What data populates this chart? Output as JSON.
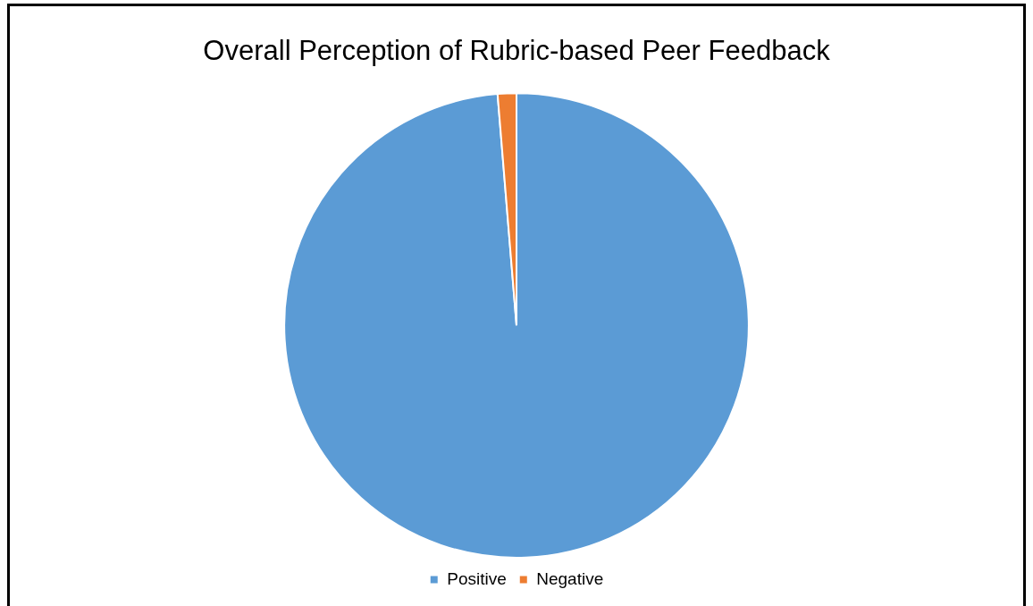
{
  "chart_data": {
    "type": "pie",
    "title": "Overall Perception of Rubric-based Peer Feedback",
    "categories": [
      "Positive",
      "Negative"
    ],
    "values": [
      98.7,
      1.3
    ],
    "colors": [
      "#5b9bd5",
      "#ed7d31"
    ],
    "legend": "bottom"
  }
}
